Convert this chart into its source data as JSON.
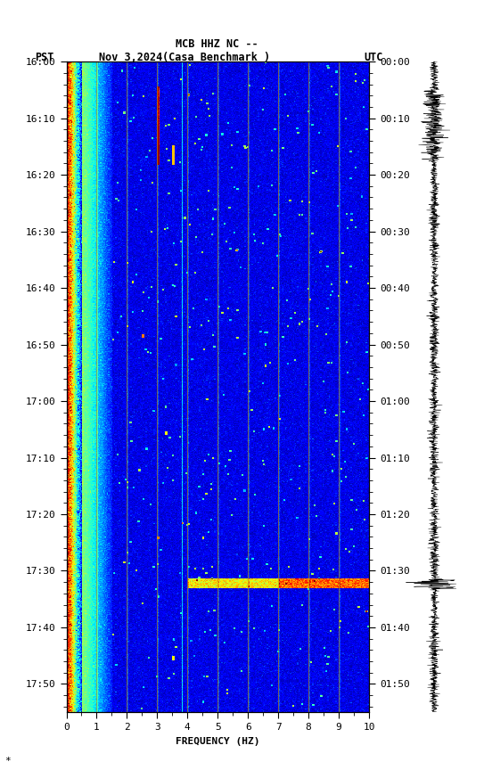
{
  "title_line1": "MCB HHZ NC --",
  "title_line2": "(Casa Benchmark )",
  "date_label": "Nov 3,2024",
  "left_axis_label": "PST",
  "right_axis_label": "UTC",
  "xlabel": "FREQUENCY (HZ)",
  "freq_min": 0,
  "freq_max": 10,
  "pst_ticks": [
    "16:00",
    "16:10",
    "16:20",
    "16:30",
    "16:40",
    "16:50",
    "17:00",
    "17:10",
    "17:20",
    "17:30",
    "17:40",
    "17:50"
  ],
  "utc_ticks": [
    "00:00",
    "00:10",
    "00:20",
    "00:30",
    "00:40",
    "00:50",
    "01:00",
    "01:10",
    "01:20",
    "01:30",
    "01:40",
    "01:50"
  ],
  "vertical_lines_freq": [
    1,
    2,
    3,
    4,
    5,
    6,
    7,
    8,
    9
  ],
  "colormap": "jet",
  "fig_bg": "#ffffff",
  "spectrogram_vlines_color": "#b8960c",
  "waveform_color": "#000000",
  "seed": 42,
  "n_freq": 300,
  "n_time": 700,
  "vmin": 0.0,
  "vmax": 1.0
}
